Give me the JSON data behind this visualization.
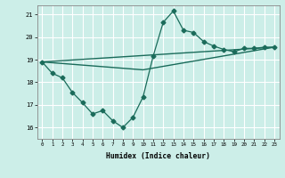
{
  "title": "",
  "xlabel": "Humidex (Indice chaleur)",
  "ylabel": "",
  "bg_color": "#cceee8",
  "line_color": "#1a6b5a",
  "grid_color": "#ffffff",
  "ylim": [
    15.5,
    21.4
  ],
  "xlim": [
    -0.5,
    23.5
  ],
  "yticks": [
    16,
    17,
    18,
    19,
    20,
    21
  ],
  "xticks": [
    0,
    1,
    2,
    3,
    4,
    5,
    6,
    7,
    8,
    9,
    10,
    11,
    12,
    13,
    14,
    15,
    16,
    17,
    18,
    19,
    20,
    21,
    22,
    23
  ],
  "series1_x": [
    0,
    1,
    2,
    3,
    4,
    5,
    6,
    7,
    8,
    9,
    10,
    11,
    12,
    13,
    14,
    15,
    16,
    17,
    18,
    19,
    20,
    21,
    22,
    23
  ],
  "series1_y": [
    18.9,
    18.4,
    18.2,
    17.55,
    17.1,
    16.6,
    16.75,
    16.3,
    16.0,
    16.45,
    17.35,
    19.15,
    20.65,
    21.15,
    20.3,
    20.2,
    19.8,
    19.6,
    19.45,
    19.35,
    19.5,
    19.5,
    19.55,
    19.55
  ],
  "series2_x": [
    0,
    23
  ],
  "series2_y": [
    18.9,
    19.55
  ],
  "series3_x": [
    0,
    10,
    23
  ],
  "series3_y": [
    18.9,
    18.55,
    19.55
  ],
  "marker": "D",
  "markersize": 2.5,
  "linewidth1": 0.9,
  "linewidth2": 1.0
}
